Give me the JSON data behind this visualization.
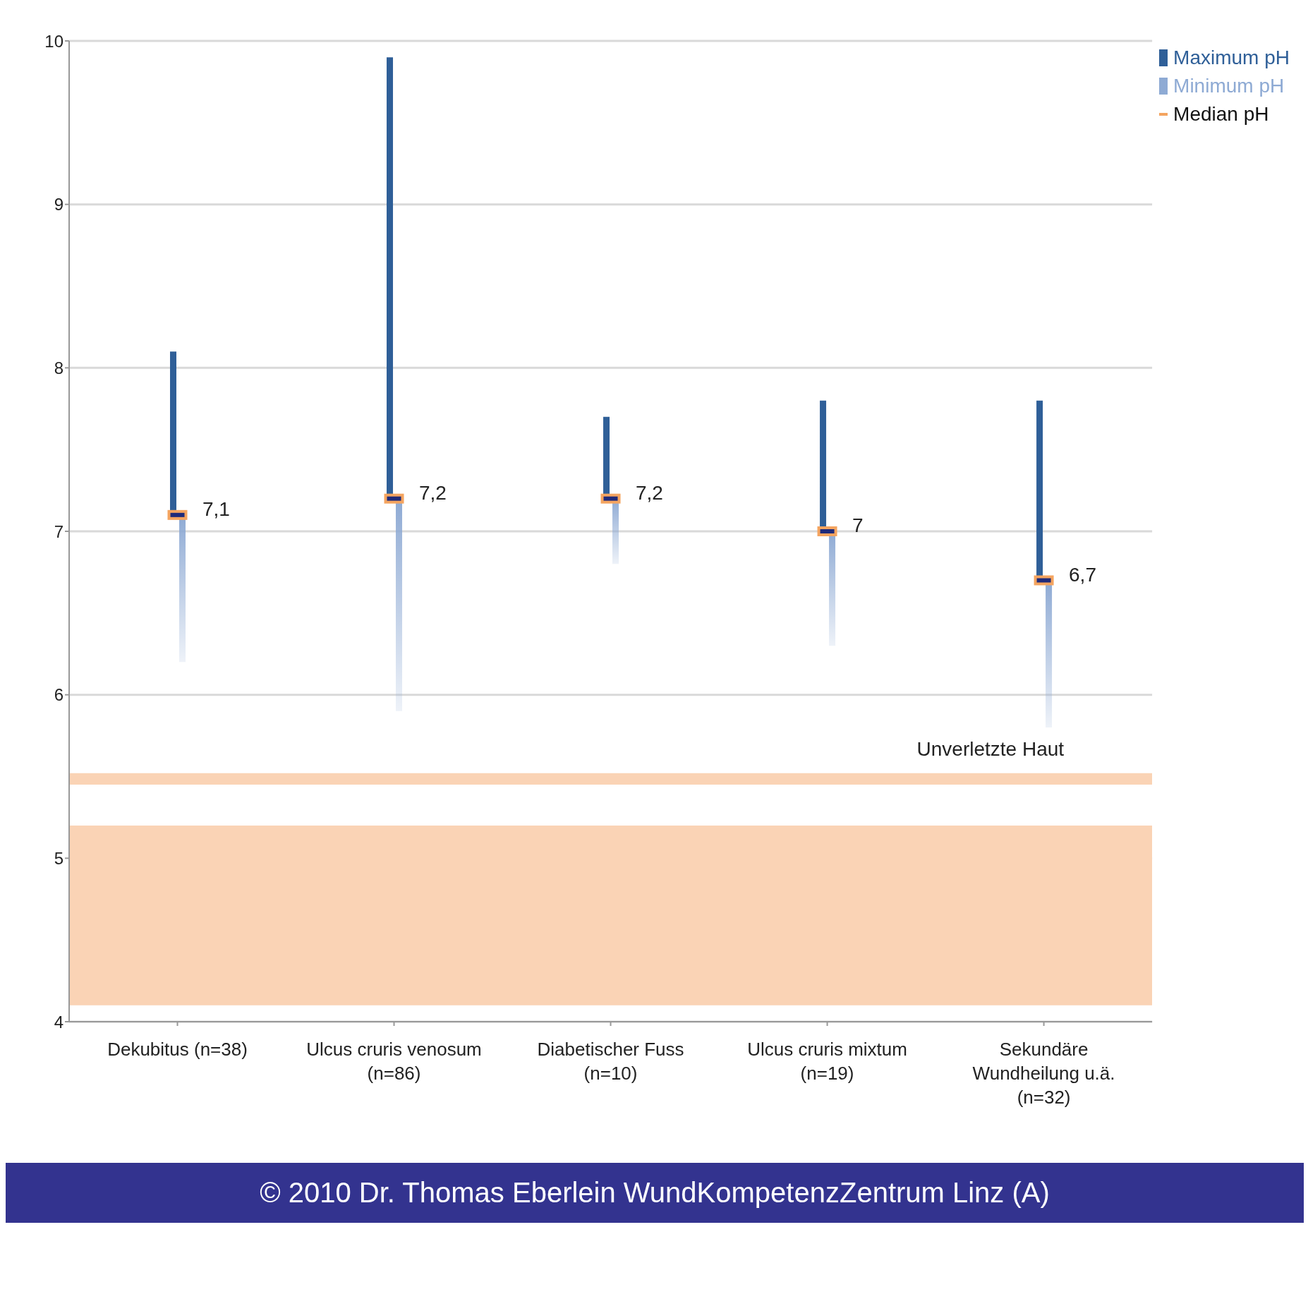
{
  "chart_data": {
    "type": "bar",
    "categories": [
      "Dekubitus (n=38)",
      "Ulcus cruris venosum (n=86)",
      "Diabetischer Fuss (n=10)",
      "Ulcus cruris mixtum (n=19)",
      "Sekundäre Wundheilung u.ä. (n=32)"
    ],
    "series": [
      {
        "name": "Maximum pH",
        "color": "#2f5f98",
        "base": [
          7.1,
          7.2,
          7.2,
          7,
          6.7
        ],
        "values": [
          1.0,
          2.7,
          0.5,
          0.8,
          1.1
        ]
      },
      {
        "name": "Minimum pH",
        "color": "#8eaad4",
        "base": [
          6.2,
          5.9,
          6.8,
          6.3,
          5.8
        ],
        "values": [
          0.9,
          1.3,
          0.4,
          0.7,
          0.9
        ]
      },
      {
        "name": "Median pH",
        "type": "scatter",
        "color": "#f4a460",
        "values": [
          7.1,
          7.2,
          7.2,
          7,
          6.7
        ],
        "value_labels": [
          "7,1",
          "7,2",
          "7,2",
          "7",
          "6,7"
        ]
      }
    ],
    "ylim": [
      4,
      10
    ],
    "yticks": [
      4,
      5,
      6,
      7,
      8,
      9,
      10
    ],
    "grid": "y",
    "legend": "top right",
    "bands": [
      {
        "axis": "y",
        "from": 5.45,
        "to": 5.52,
        "label": "Unverletzte Haut",
        "color": "#fad3b5"
      },
      {
        "axis": "y",
        "from": 4.1,
        "to": 5.2,
        "color": "#fad3b5"
      }
    ],
    "annotations": [
      "© 2010 Dr. Thomas Eberlein WundKompetenzZentrum Linz (A)"
    ]
  }
}
